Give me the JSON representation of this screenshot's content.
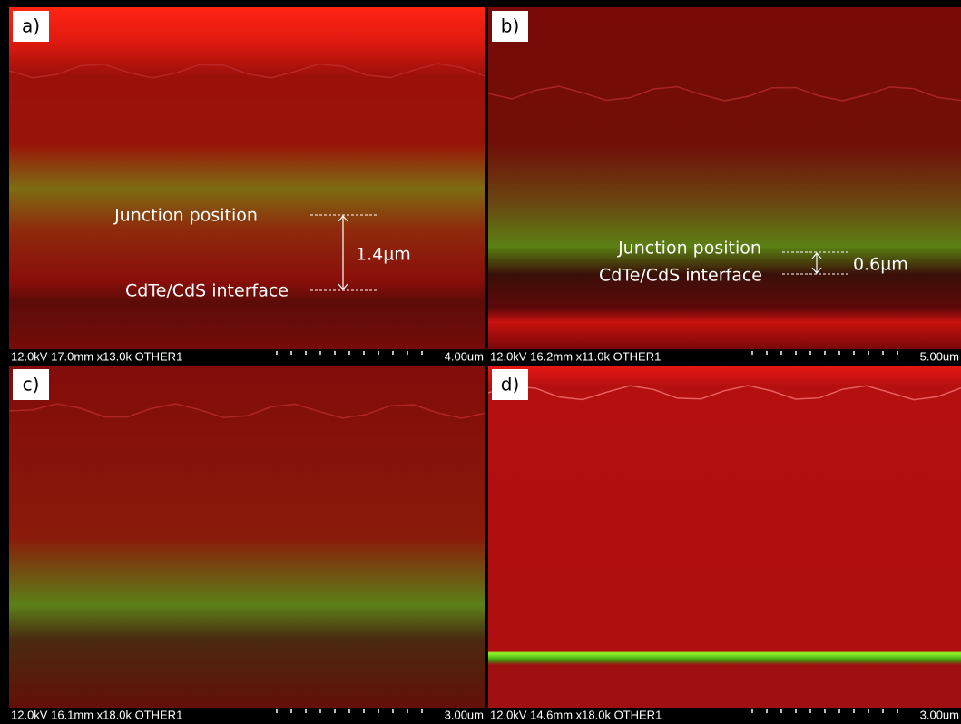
{
  "panels": [
    {
      "label": "a)",
      "info": "12.0kV 17.0mm x13.0k OTHER1",
      "scale": "4.00um",
      "annotations": {
        "junction": "Junction position",
        "interface": "CdTe/CdS interface",
        "distance": "1.4µm"
      }
    },
    {
      "label": "b)",
      "info": "12.0kV 16.2mm x11.0k OTHER1",
      "scale": "5.00um",
      "annotations": {
        "junction": "Junction position",
        "interface": "CdTe/CdS interface",
        "distance": "0.6µm"
      }
    },
    {
      "label": "c)",
      "info": "12.0kV 16.1mm x18.0k OTHER1",
      "scale": "3.00um"
    },
    {
      "label": "d)",
      "info": "12.0kV 14.6mm x18.0k OTHER1",
      "scale": "3.00um"
    }
  ]
}
